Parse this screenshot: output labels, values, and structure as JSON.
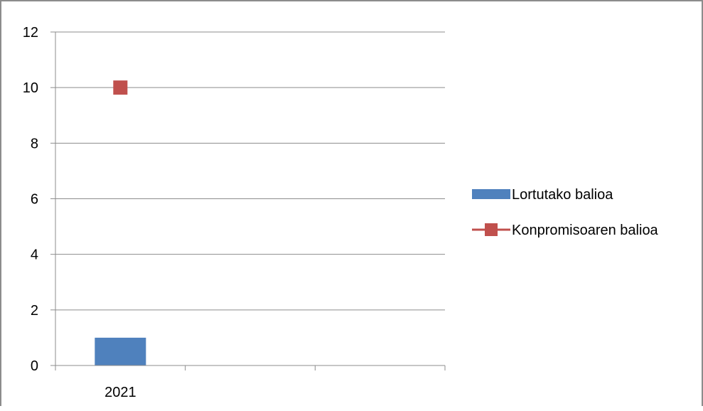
{
  "chart_data": {
    "type": "bar",
    "categories": [
      "2021",
      "",
      ""
    ],
    "ylim": [
      0,
      12
    ],
    "yticks": [
      "0",
      "2",
      "4",
      "6",
      "8",
      "10",
      "12"
    ],
    "grid": true,
    "legend_position": "right",
    "series": [
      {
        "name": "Lortutako balioa",
        "type": "bar",
        "color": "#4f81bd",
        "values": [
          1,
          null,
          null
        ]
      },
      {
        "name": "Konpromisoaren balioa",
        "type": "line",
        "marker": "square",
        "color": "#c0504d",
        "values": [
          10,
          null,
          null
        ]
      }
    ]
  }
}
